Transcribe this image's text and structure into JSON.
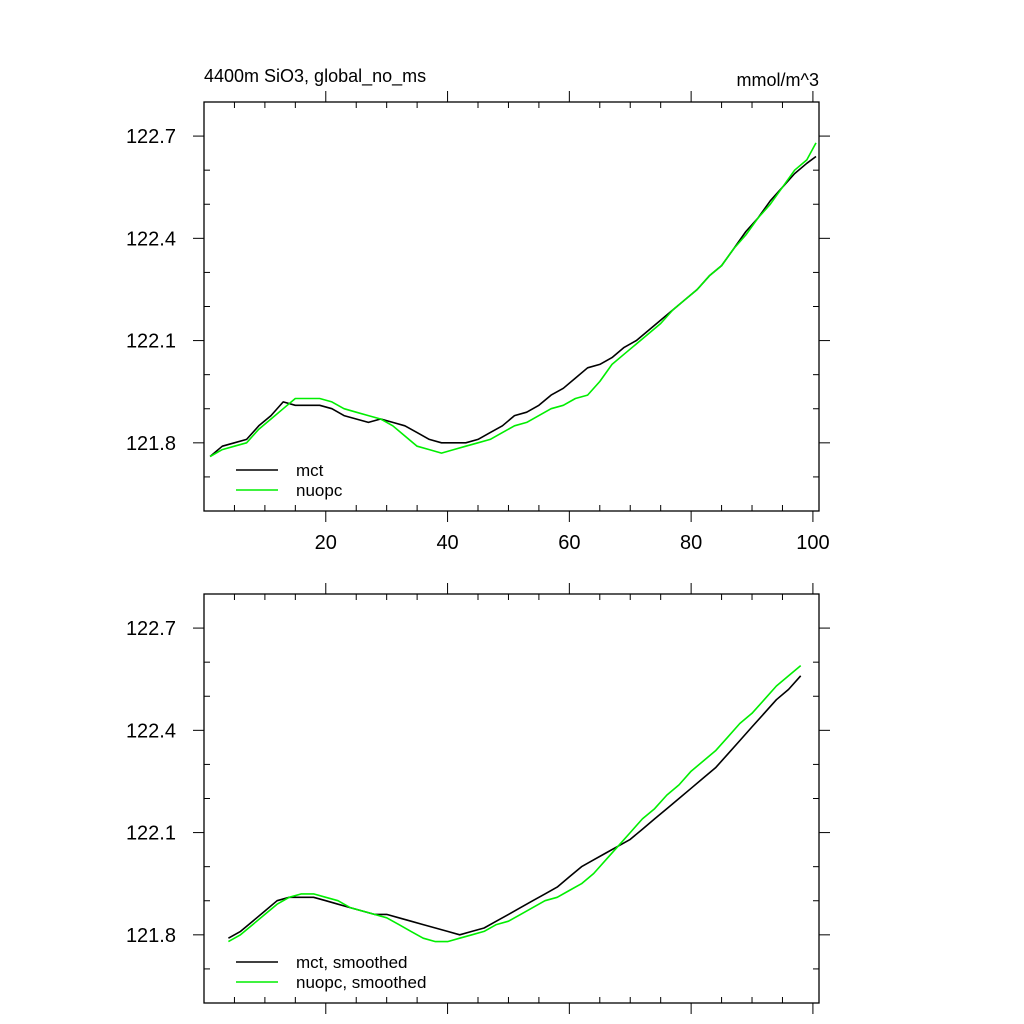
{
  "chart_data": [
    {
      "type": "line",
      "title": "4400m SiO3, global_no_ms",
      "units": "mmol/m^3",
      "xlabel": "",
      "ylabel": "",
      "xlim": [
        0,
        101
      ],
      "ylim": [
        121.6,
        122.8
      ],
      "xticks": [
        20,
        40,
        60,
        80,
        100
      ],
      "xtick_labels": [
        "20",
        "40",
        "60",
        "80",
        "100"
      ],
      "yticks": [
        121.8,
        122.1,
        122.4,
        122.7
      ],
      "ytick_labels": [
        "121.8",
        "122.1",
        "122.4",
        "122.7"
      ],
      "legend": "bottom-left",
      "series": [
        {
          "name": "mct",
          "color": "#000000",
          "x": [
            1,
            3,
            5,
            7,
            9,
            11,
            13,
            15,
            17,
            19,
            21,
            23,
            25,
            27,
            29,
            31,
            33,
            35,
            37,
            39,
            41,
            43,
            45,
            47,
            49,
            51,
            53,
            55,
            57,
            59,
            61,
            63,
            65,
            67,
            69,
            71,
            73,
            75,
            77,
            79,
            81,
            83,
            85,
            87,
            89,
            91,
            93,
            95,
            97,
            99,
            100.5
          ],
          "values": [
            121.76,
            121.79,
            121.8,
            121.81,
            121.85,
            121.88,
            121.92,
            121.91,
            121.91,
            121.91,
            121.9,
            121.88,
            121.87,
            121.86,
            121.87,
            121.86,
            121.85,
            121.83,
            121.81,
            121.8,
            121.8,
            121.8,
            121.81,
            121.83,
            121.85,
            121.88,
            121.89,
            121.91,
            121.94,
            121.96,
            121.99,
            122.02,
            122.03,
            122.05,
            122.08,
            122.1,
            122.13,
            122.16,
            122.19,
            122.22,
            122.25,
            122.29,
            122.32,
            122.37,
            122.42,
            122.46,
            122.51,
            122.55,
            122.59,
            122.62,
            122.64
          ]
        },
        {
          "name": "nuopc",
          "color": "#00ee00",
          "x": [
            1,
            3,
            5,
            7,
            9,
            11,
            13,
            15,
            17,
            19,
            21,
            23,
            25,
            27,
            29,
            31,
            33,
            35,
            37,
            39,
            41,
            43,
            45,
            47,
            49,
            51,
            53,
            55,
            57,
            59,
            61,
            63,
            65,
            67,
            69,
            71,
            73,
            75,
            77,
            79,
            81,
            83,
            85,
            87,
            89,
            91,
            93,
            95,
            97,
            99,
            100.5
          ],
          "values": [
            121.76,
            121.78,
            121.79,
            121.8,
            121.84,
            121.87,
            121.9,
            121.93,
            121.93,
            121.93,
            121.92,
            121.9,
            121.89,
            121.88,
            121.87,
            121.85,
            121.82,
            121.79,
            121.78,
            121.77,
            121.78,
            121.79,
            121.8,
            121.81,
            121.83,
            121.85,
            121.86,
            121.88,
            121.9,
            121.91,
            121.93,
            121.94,
            121.98,
            122.03,
            122.06,
            122.09,
            122.12,
            122.15,
            122.19,
            122.22,
            122.25,
            122.29,
            122.32,
            122.37,
            122.41,
            122.46,
            122.5,
            122.55,
            122.6,
            122.63,
            122.68
          ]
        }
      ]
    },
    {
      "type": "line",
      "title": "",
      "xlabel": "",
      "ylabel": "",
      "xlim": [
        0,
        101
      ],
      "ylim": [
        121.6,
        122.8
      ],
      "xticks": [
        20,
        40,
        60,
        80,
        100
      ],
      "xtick_labels": [],
      "yticks": [
        121.8,
        122.1,
        122.4,
        122.7
      ],
      "ytick_labels": [
        "121.8",
        "122.1",
        "122.4",
        "122.7"
      ],
      "legend": "bottom-left",
      "series": [
        {
          "name": "mct, smoothed",
          "color": "#000000",
          "x": [
            4,
            6,
            8,
            10,
            12,
            14,
            16,
            18,
            20,
            22,
            24,
            26,
            28,
            30,
            32,
            34,
            36,
            38,
            40,
            42,
            44,
            46,
            48,
            50,
            52,
            54,
            56,
            58,
            60,
            62,
            64,
            66,
            68,
            70,
            72,
            74,
            76,
            78,
            80,
            82,
            84,
            86,
            88,
            90,
            92,
            94,
            96,
            98
          ],
          "values": [
            121.79,
            121.81,
            121.84,
            121.87,
            121.9,
            121.91,
            121.91,
            121.91,
            121.9,
            121.89,
            121.88,
            121.87,
            121.86,
            121.86,
            121.85,
            121.84,
            121.83,
            121.82,
            121.81,
            121.8,
            121.81,
            121.82,
            121.84,
            121.86,
            121.88,
            121.9,
            121.92,
            121.94,
            121.97,
            122.0,
            122.02,
            122.04,
            122.06,
            122.08,
            122.11,
            122.14,
            122.17,
            122.2,
            122.23,
            122.26,
            122.29,
            122.33,
            122.37,
            122.41,
            122.45,
            122.49,
            122.52,
            122.56
          ]
        },
        {
          "name": "nuopc, smoothed",
          "color": "#00ee00",
          "x": [
            4,
            6,
            8,
            10,
            12,
            14,
            16,
            18,
            20,
            22,
            24,
            26,
            28,
            30,
            32,
            34,
            36,
            38,
            40,
            42,
            44,
            46,
            48,
            50,
            52,
            54,
            56,
            58,
            60,
            62,
            64,
            66,
            68,
            70,
            72,
            74,
            76,
            78,
            80,
            82,
            84,
            86,
            88,
            90,
            92,
            94,
            96,
            98
          ],
          "values": [
            121.78,
            121.8,
            121.83,
            121.86,
            121.89,
            121.91,
            121.92,
            121.92,
            121.91,
            121.9,
            121.88,
            121.87,
            121.86,
            121.85,
            121.83,
            121.81,
            121.79,
            121.78,
            121.78,
            121.79,
            121.8,
            121.81,
            121.83,
            121.84,
            121.86,
            121.88,
            121.9,
            121.91,
            121.93,
            121.95,
            121.98,
            122.02,
            122.06,
            122.1,
            122.14,
            122.17,
            122.21,
            122.24,
            122.28,
            122.31,
            122.34,
            122.38,
            122.42,
            122.45,
            122.49,
            122.53,
            122.56,
            122.59
          ]
        }
      ]
    }
  ]
}
